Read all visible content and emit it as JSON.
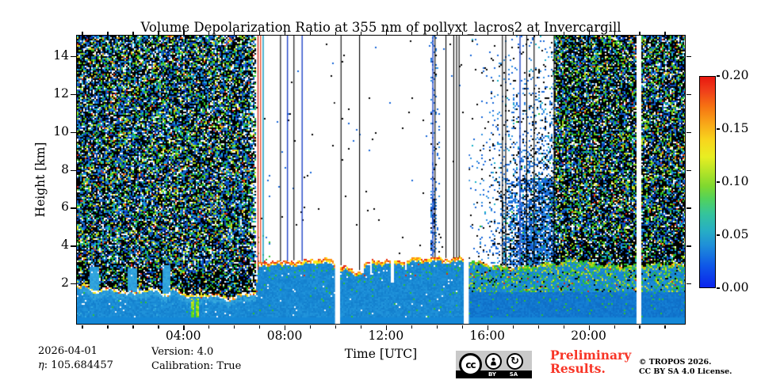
{
  "figure": {
    "footer": {
      "date": "2026-04-01",
      "eta_symbol": "η",
      "eta_value": ": 105.684457",
      "version": "Version: 4.0",
      "calibration": "Calibration: True",
      "preliminary_line1": "Preliminary",
      "preliminary_line2": "Results.",
      "copyright_line1": "© TROPOS 2026.",
      "copyright_line2": "CC BY SA 4.0 License.",
      "license_badge": {
        "cc": "cc",
        "by": "BY",
        "sa": "SA",
        "sa_glyph": "↻"
      }
    }
  },
  "chart_data": {
    "type": "heatmap",
    "title": "Volume Depolarization Ratio at 355 nm of pollyxt_lacros2 at Invercargill",
    "xlabel": "Time [UTC]",
    "ylabel": "Height [km]",
    "xlim_hours": [
      0,
      24
    ],
    "ylim_km": [
      0,
      15.2
    ],
    "xticks": {
      "major_hours": [
        4,
        8,
        12,
        16,
        20
      ],
      "major_labels": [
        "04:00",
        "08:00",
        "12:00",
        "16:00",
        "20:00"
      ],
      "minor_every_hours": 1
    },
    "yticks": {
      "major_km": [
        2,
        4,
        6,
        8,
        10,
        12,
        14
      ],
      "major_labels": [
        "2",
        "4",
        "6",
        "8",
        "10",
        "12",
        "14"
      ]
    },
    "grid": false,
    "colorbar": {
      "range": [
        0.0,
        0.2
      ],
      "tick_values": [
        0.0,
        0.05,
        0.1,
        0.15,
        0.2
      ],
      "tick_labels": [
        "0.00",
        "0.05",
        "0.10",
        "0.15",
        "0.20"
      ],
      "colormap_stops_bottom_to_top": [
        [
          0.0,
          "#0b24ec"
        ],
        [
          0.1,
          "#0e56e8"
        ],
        [
          0.2,
          "#1f8fd8"
        ],
        [
          0.27,
          "#27aec4"
        ],
        [
          0.35,
          "#35c49b"
        ],
        [
          0.42,
          "#52d25c"
        ],
        [
          0.48,
          "#7fd82f"
        ],
        [
          0.55,
          "#b4e428"
        ],
        [
          0.62,
          "#e8ee22"
        ],
        [
          0.7,
          "#f8d51d"
        ],
        [
          0.78,
          "#f8a518"
        ],
        [
          0.86,
          "#f67212"
        ],
        [
          0.93,
          "#f0411a"
        ],
        [
          1.0,
          "#e81810"
        ]
      ]
    },
    "scene": {
      "description": "Lidar quicklook: dense depolarization noise above a low aerosol layer before ~06:50 UTC and after ~18:40 UTC; clean (white) free troposphere 07:00-15:15 with sparse specks; growing blue speckle 15:15-18:40; boundary-layer top with bright fringe near 1.3-3.4 km; three full-height data gaps; calibration/instrument vertical lines 06:55-18:40.",
      "regions": {
        "dense_left_end_h": 6.87,
        "clean_mid_end_h": 15.25,
        "sparse_end_h": 18.62
      },
      "layer_top_km": [
        [
          0,
          1.95
        ],
        [
          0.25,
          1.9
        ],
        [
          0.28,
          1.65
        ],
        [
          0.66,
          1.65
        ],
        [
          0.7,
          1.75
        ],
        [
          1.5,
          1.7
        ],
        [
          1.78,
          1.55
        ],
        [
          2.16,
          1.55
        ],
        [
          2.2,
          1.7
        ],
        [
          3.1,
          1.7
        ],
        [
          3.19,
          1.5
        ],
        [
          3.5,
          1.5
        ],
        [
          3.55,
          1.8
        ],
        [
          3.8,
          1.6
        ],
        [
          4.2,
          1.45
        ],
        [
          4.6,
          1.35
        ],
        [
          5.0,
          1.5
        ],
        [
          5.4,
          1.35
        ],
        [
          5.8,
          1.25
        ],
        [
          6.2,
          1.4
        ],
        [
          6.6,
          1.55
        ],
        [
          6.87,
          1.6
        ],
        [
          6.95,
          3.05
        ],
        [
          7.3,
          3.1
        ],
        [
          7.6,
          3.25
        ],
        [
          7.9,
          3.1
        ],
        [
          8.3,
          3.2
        ],
        [
          8.7,
          3.15
        ],
        [
          9.2,
          3.3
        ],
        [
          9.8,
          3.25
        ],
        [
          10.1,
          2.95
        ],
        [
          10.4,
          2.9
        ],
        [
          10.55,
          2.8
        ],
        [
          10.75,
          2.6
        ],
        [
          11.0,
          2.7
        ],
        [
          11.2,
          3.1
        ],
        [
          11.6,
          3.2
        ],
        [
          12.0,
          3.25
        ],
        [
          12.5,
          3.2
        ],
        [
          13.0,
          3.3
        ],
        [
          13.5,
          3.35
        ],
        [
          14.0,
          3.35
        ],
        [
          14.5,
          3.3
        ],
        [
          15.0,
          3.35
        ],
        [
          15.25,
          3.3
        ],
        [
          15.6,
          3.15
        ],
        [
          16.0,
          3.0
        ],
        [
          16.5,
          2.9
        ],
        [
          17.0,
          2.85
        ],
        [
          17.5,
          2.9
        ],
        [
          18.0,
          3.0
        ],
        [
          18.5,
          3.05
        ],
        [
          19.0,
          3.1
        ],
        [
          19.3,
          3.3
        ],
        [
          19.6,
          3.2
        ],
        [
          20.0,
          3.1
        ],
        [
          20.5,
          3.0
        ],
        [
          21.0,
          2.95
        ],
        [
          21.5,
          2.9
        ],
        [
          22.0,
          2.95
        ],
        [
          22.5,
          3.0
        ],
        [
          23.0,
          3.05
        ],
        [
          23.5,
          3.0
        ],
        [
          23.8,
          3.0
        ]
      ],
      "data_gaps_hours": [
        [
          9.99,
          10.17
        ],
        [
          15.08,
          15.27
        ],
        [
          21.89,
          22.08
        ]
      ],
      "vertical_lines": [
        {
          "t": 6.93,
          "color": "#d42414",
          "w": 1.3
        },
        {
          "t": 7.03,
          "color": "#f04822",
          "w": 1.3
        },
        {
          "t": 7.13,
          "color": "#189ec0",
          "w": 1.5
        },
        {
          "t": 7.82,
          "color": "#000000",
          "w": 1.1
        },
        {
          "t": 8.35,
          "color": "#000000",
          "w": 1.1
        },
        {
          "t": 10.21,
          "color": "#000000",
          "w": 1.1
        },
        {
          "t": 10.94,
          "color": "#000000",
          "w": 1.1
        },
        {
          "t": 13.92,
          "color": "#000000",
          "w": 1.1
        },
        {
          "t": 14.35,
          "color": "#000000",
          "w": 1.1
        },
        {
          "t": 14.66,
          "color": "#000000",
          "w": 1.1
        },
        {
          "t": 14.77,
          "color": "#000000",
          "w": 1.1
        },
        {
          "t": 14.87,
          "color": "#000000",
          "w": 1.1
        },
        {
          "t": 16.58,
          "color": "#000000",
          "w": 1.1
        },
        {
          "t": 16.71,
          "color": "#000000",
          "w": 1.1
        },
        {
          "t": 17.54,
          "color": "#000000",
          "w": 1.1
        },
        {
          "t": 17.83,
          "color": "#000000",
          "w": 1.1
        },
        {
          "t": 18.62,
          "color": "#000000",
          "w": 1.1
        },
        {
          "t": 8.09,
          "color": "#2246c8",
          "w": 1.4
        },
        {
          "t": 8.67,
          "color": "#2246c8",
          "w": 1.4
        },
        {
          "t": 13.83,
          "color": "#2246c8",
          "w": 1.4
        },
        {
          "t": 17.27,
          "color": "#2246c8",
          "w": 1.4
        }
      ],
      "blue_notch_columns": [
        [
          0.28,
          0.66,
          2.9
        ],
        [
          1.78,
          2.16,
          2.8
        ],
        [
          3.19,
          3.5,
          3.0
        ]
      ],
      "white_slits": [
        [
          11.02,
          11.1,
          2.55
        ],
        [
          11.36,
          11.44,
          2.5
        ],
        [
          12.2,
          12.32,
          2.05
        ],
        [
          12.74,
          12.82,
          2.75
        ]
      ],
      "green_ground_streaks": [
        [
          4.33,
          4.42
        ],
        [
          4.5,
          4.62
        ]
      ],
      "speckle_column_hours": [
        13.76,
        13.98
      ],
      "calib_residue_patch": {
        "t0": 6.9,
        "t1": 7.45,
        "h_max": 4.7,
        "p": 0.1
      },
      "blue_patch": {
        "t0": 16.55,
        "t1": 18.62,
        "h0": 3.0,
        "h1": 7.6,
        "mult": 2.3
      },
      "palettes": {
        "noise_dense_left": [
          [
            0.4,
            "#000000"
          ],
          [
            0.065,
            "#0a3cc8"
          ],
          [
            0.075,
            "#1e72dc"
          ],
          [
            0.07,
            "#18b4d8"
          ],
          [
            0.075,
            "#28c028"
          ],
          [
            0.05,
            "#90d818"
          ],
          [
            0.032,
            "#e0e020"
          ],
          [
            0.013,
            "#f08818"
          ],
          [
            0.013,
            "#e02810"
          ],
          [
            0.1,
            "#ffffff"
          ],
          [
            0.107,
            "#0c56b4"
          ]
        ],
        "noise_dense_dark": [
          [
            0.58,
            "#000000"
          ],
          [
            0.05,
            "#0a3cc8"
          ],
          [
            0.05,
            "#1e72dc"
          ],
          [
            0.05,
            "#18b4d8"
          ],
          [
            0.06,
            "#28c028"
          ],
          [
            0.04,
            "#90d818"
          ],
          [
            0.02,
            "#e0e020"
          ],
          [
            0.01,
            "#f08818"
          ],
          [
            0.01,
            "#e02810"
          ],
          [
            0.06,
            "#ffffff"
          ],
          [
            0.07,
            "#0c56b4"
          ]
        ],
        "noise_dense_right": [
          [
            0.46,
            "#000000"
          ],
          [
            0.06,
            "#0a3cc8"
          ],
          [
            0.07,
            "#1e72dc"
          ],
          [
            0.065,
            "#18b4d8"
          ],
          [
            0.085,
            "#28c028"
          ],
          [
            0.055,
            "#90d818"
          ],
          [
            0.03,
            "#e0e020"
          ],
          [
            0.012,
            "#f08818"
          ],
          [
            0.013,
            "#e02810"
          ],
          [
            0.08,
            "#ffffff"
          ],
          [
            0.07,
            "#0c56b4"
          ]
        ],
        "sparse_dots": [
          [
            0.6,
            "#000000"
          ],
          [
            0.4,
            "#1565d8"
          ]
        ],
        "sparse_blue": [
          [
            0.42,
            "#1565d8"
          ],
          [
            0.2,
            "#2e8fe0"
          ],
          [
            0.06,
            "#15b0c8"
          ],
          [
            0.3,
            "#000000"
          ],
          [
            0.02,
            "#28c028"
          ]
        ],
        "col_blue": [
          [
            0.55,
            "#1565d8"
          ],
          [
            0.25,
            "#2e8fe0"
          ],
          [
            0.2,
            "#000000"
          ]
        ],
        "patch_calib": [
          [
            0.5,
            "#2fc32f"
          ],
          [
            0.5,
            "#1e72dc"
          ]
        ],
        "fringe_left": [
          [
            0.5,
            "#ffffff"
          ],
          [
            0.3,
            "#ffe818"
          ],
          [
            0.12,
            "#ff9010"
          ],
          [
            0.08,
            "#e83010"
          ]
        ],
        "fringe_mid_top": [
          [
            0.42,
            "#e83010"
          ],
          [
            0.38,
            "#ff9010"
          ],
          [
            0.2,
            "#ffe818"
          ]
        ],
        "fringe_mid_low": [
          [
            0.45,
            "#ffe818"
          ],
          [
            0.3,
            "#ffffff"
          ],
          [
            0.25,
            "#ff9010"
          ]
        ],
        "fringe_right": [
          [
            0.45,
            "#3fc82a"
          ],
          [
            0.3,
            "#a8d820"
          ],
          [
            0.15,
            "#ffe818"
          ],
          [
            0.1,
            "#ff9010"
          ]
        ],
        "layer_base": [
          [
            0.25,
            "#1787d3"
          ],
          [
            0.25,
            "#1b8cd6"
          ],
          [
            0.25,
            "#2093da"
          ],
          [
            0.25,
            "#1480ce"
          ]
        ],
        "layer_light": [
          [
            0.4,
            "#2fa0dc"
          ],
          [
            0.35,
            "#35aade"
          ],
          [
            0.25,
            "#2897d8"
          ]
        ],
        "layer_deep": [
          [
            0.34,
            "#1177cf"
          ],
          [
            0.33,
            "#1580d4"
          ],
          [
            0.33,
            "#0f6fc8"
          ]
        ],
        "green_speckle": [
          [
            0.5,
            "#2fc32f"
          ],
          [
            0.3,
            "#96d818"
          ],
          [
            0.2,
            "#e0e020"
          ]
        ],
        "streak_green": [
          [
            0.5,
            "#58d818"
          ],
          [
            0.3,
            "#a8e018"
          ],
          [
            0.2,
            "#e8e818"
          ]
        ]
      }
    }
  }
}
